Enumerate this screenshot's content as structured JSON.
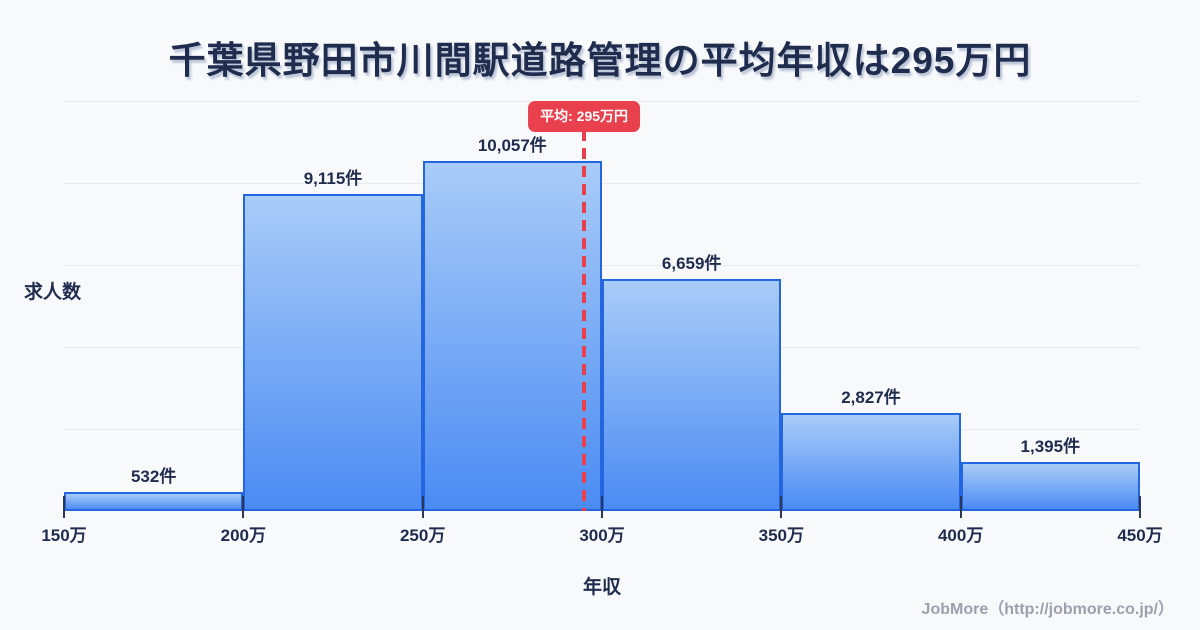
{
  "title": "千葉県野田市川間駅道路管理の平均年収は295万円",
  "average_label": "平均: 295万円",
  "footer_credit": "JobMore（http://jobmore.co.jp/）",
  "colors": {
    "background": "#f8f9fb",
    "title_text": "#1f2c4e",
    "bar_fill_top": "#a9ccf8",
    "bar_fill_bottom": "#4b8bf3",
    "bar_border": "#2465e0",
    "average_red": "#e8414d",
    "gridline": "#e7eaf1",
    "tick": "#2c3655",
    "footer_text": "#9aa1ad"
  },
  "chart_data": {
    "type": "bar",
    "title": "千葉県野田市川間駅道路管理の平均年収は295万円",
    "xlabel": "年収",
    "ylabel": "求人数",
    "x_tick_labels": [
      "150万",
      "200万",
      "250万",
      "300万",
      "350万",
      "400万",
      "450万"
    ],
    "x_range_man_yen": [
      150,
      450
    ],
    "bin_width_man_yen": 50,
    "values": [
      532,
      9115,
      10057,
      6659,
      2827,
      1395
    ],
    "bar_labels": [
      "532件",
      "9,115件",
      "10,057件",
      "6,659件",
      "2,827件",
      "1,395件"
    ],
    "average_man_yen": 295,
    "average_label": "平均: 295万円",
    "grid": true,
    "legend": false,
    "bar_orientation": "vertical"
  }
}
